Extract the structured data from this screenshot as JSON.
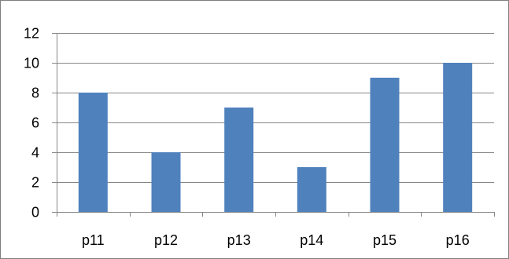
{
  "chart_data": {
    "type": "bar",
    "categories": [
      "p11",
      "p12",
      "p13",
      "p14",
      "p15",
      "p16"
    ],
    "values": [
      8,
      4,
      7,
      3,
      9,
      10
    ],
    "title": "",
    "xlabel": "",
    "ylabel": "",
    "ylim": [
      0,
      12
    ],
    "yticks": [
      "0",
      "2",
      "4",
      "6",
      "8",
      "10",
      "12"
    ],
    "grid": true,
    "legend": "none",
    "colors": {
      "bar": "#4f81bd",
      "grid": "#868686",
      "axis": "#868686",
      "border": "#7f7f7f"
    }
  }
}
